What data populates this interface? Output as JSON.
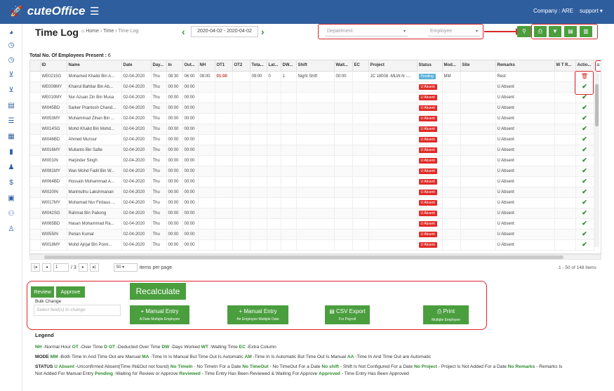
{
  "app": {
    "brand": "cuteOffice",
    "company": "Company : ARE",
    "user": "support"
  },
  "page": {
    "title": "Time Log",
    "breadcrumb_home": "Home",
    "breadcrumb_section": "Time",
    "breadcrumb_current": "Time Log"
  },
  "date_range": "2020-04-02 - 2020-04-02",
  "filters": {
    "department": "Department",
    "employee": "Employee"
  },
  "total": {
    "label": "Total No. Of Employees Present :",
    "value": "6"
  },
  "table": {
    "columns": [
      "",
      "ID",
      "Name",
      "Date",
      "Day...",
      "In",
      "Out...",
      "NH",
      "OT1",
      "OT2",
      "Tota...",
      "Lat...",
      "DW...",
      "Shift",
      "Wait...",
      "EC",
      "Project",
      "Status",
      "Mod...",
      "Site",
      "Remarks",
      "W T R...",
      "Actio..."
    ],
    "rows": [
      [
        "",
        "WE0215G",
        "Mohamed Khalid Bin A...",
        "02-04-2020",
        "Thu",
        "08:30",
        "06:00",
        "08:00",
        "01:00",
        "",
        "09:00",
        "0",
        "1",
        "Night Shift",
        "00:00",
        "",
        "JC 18008 -MLW-N -...",
        "Pending",
        "MM",
        "",
        "Rest",
        "",
        ""
      ],
      [
        "",
        "WE009MY",
        "Khairul Bahtiar Bin Ab...",
        "02-04-2020",
        "Thu",
        "00:00",
        "00:00",
        "",
        "",
        "",
        "",
        "",
        "",
        "",
        "",
        "",
        "",
        "U Absent",
        "",
        "",
        "U Absent",
        "",
        ""
      ],
      [
        "",
        "WE010MY",
        "Nur Azuan Zin Bin Musa",
        "02-04-2020",
        "Thu",
        "00:00",
        "00:00",
        "",
        "",
        "",
        "",
        "",
        "",
        "",
        "",
        "",
        "",
        "U Absent",
        "",
        "",
        "U Absent",
        "",
        ""
      ],
      [
        "",
        "WI045BD",
        "Sarker Prantosh Chand...",
        "02-04-2020",
        "Thu",
        "00:00",
        "00:00",
        "",
        "",
        "",
        "",
        "",
        "",
        "",
        "",
        "",
        "",
        "U Absent",
        "",
        "",
        "U Absent",
        "",
        ""
      ],
      [
        "",
        "WI053MY",
        "Muhammad Zihan Bin ...",
        "02-04-2020",
        "Thu",
        "00:00",
        "00:00",
        "",
        "",
        "",
        "",
        "",
        "",
        "",
        "",
        "",
        "",
        "U Absent",
        "",
        "",
        "U Absent",
        "",
        ""
      ],
      [
        "",
        "WI014SG",
        "Mohd Khalid Bin Mohd...",
        "02-04-2020",
        "Thu",
        "00:00",
        "00:00",
        "",
        "",
        "",
        "",
        "",
        "",
        "",
        "",
        "",
        "",
        "U Absent",
        "",
        "",
        "U Absent",
        "",
        ""
      ],
      [
        "",
        "WI046BD",
        "Ahmed Munsur",
        "02-04-2020",
        "Thu",
        "00:00",
        "00:00",
        "",
        "",
        "",
        "",
        "",
        "",
        "",
        "",
        "",
        "",
        "U Absent",
        "",
        "",
        "U Absent",
        "",
        ""
      ],
      [
        "",
        "WI016MY",
        "Mulianto Bin Safie",
        "02-04-2020",
        "Thu",
        "00:00",
        "00:00",
        "",
        "",
        "",
        "",
        "",
        "",
        "",
        "",
        "",
        "",
        "U Absent",
        "",
        "",
        "U Absent",
        "",
        ""
      ],
      [
        "",
        "WI001IN",
        "Harjinder Singh",
        "02-04-2020",
        "Thu",
        "00:00",
        "00:00",
        "",
        "",
        "",
        "",
        "",
        "",
        "",
        "",
        "",
        "",
        "U Absent",
        "",
        "",
        "U Absent",
        "",
        ""
      ],
      [
        "",
        "WI081MY",
        "Wan Mohd Fadil Bin W...",
        "02-04-2020",
        "Thu",
        "00:00",
        "00:00",
        "",
        "",
        "",
        "",
        "",
        "",
        "",
        "",
        "",
        "",
        "U Absent",
        "",
        "",
        "U Absent",
        "",
        ""
      ],
      [
        "",
        "WI064BD",
        "Hossain Mohammad A...",
        "02-04-2020",
        "Thu",
        "00:00",
        "00:00",
        "",
        "",
        "",
        "",
        "",
        "",
        "",
        "",
        "",
        "",
        "U Absent",
        "",
        "",
        "U Absent",
        "",
        ""
      ],
      [
        "",
        "WI020IN",
        "Marimuthu Lakshmanan",
        "02-04-2020",
        "Thu",
        "00:00",
        "00:00",
        "",
        "",
        "",
        "",
        "",
        "",
        "",
        "",
        "",
        "",
        "U Absent",
        "",
        "",
        "U Absent",
        "",
        ""
      ],
      [
        "",
        "WI017MY",
        "Mohamad Nur Firdaus ...",
        "02-04-2020",
        "Thu",
        "00:00",
        "00:00",
        "",
        "",
        "",
        "",
        "",
        "",
        "",
        "",
        "",
        "",
        "U Absent",
        "",
        "",
        "U Absent",
        "",
        ""
      ],
      [
        "",
        "WI042SG",
        "Rahmat Bin Pabong",
        "02-04-2020",
        "Thu",
        "00:00",
        "00:00",
        "",
        "",
        "",
        "",
        "",
        "",
        "",
        "",
        "",
        "",
        "U Absent",
        "",
        "",
        "U Absent",
        "",
        ""
      ],
      [
        "",
        "WI065BD",
        "Hasan Mohammad Ra...",
        "02-04-2020",
        "Thu",
        "00:00",
        "00:00",
        "",
        "",
        "",
        "",
        "",
        "",
        "",
        "",
        "",
        "",
        "U Absent",
        "",
        "",
        "U Absent",
        "",
        ""
      ],
      [
        "",
        "WI055IN",
        "Perian Kumar",
        "02-04-2020",
        "Thu",
        "00:00",
        "00:00",
        "",
        "",
        "",
        "",
        "",
        "",
        "",
        "",
        "",
        "",
        "U Absent",
        "",
        "",
        "U Absent",
        "",
        ""
      ],
      [
        "",
        "WI018MY",
        "Mohd Ajrijal Bin Ponir...",
        "02-04-2020",
        "Thu",
        "00:00",
        "00:00",
        "",
        "",
        "",
        "",
        "",
        "",
        "",
        "",
        "",
        "",
        "U Absent",
        "",
        "",
        "U Absent",
        "",
        ""
      ]
    ]
  },
  "pager": {
    "page": "1",
    "of": "/ 3",
    "size": "50",
    "items_per_page": "items per page",
    "info": "1 - 50 of 148 items"
  },
  "actions": {
    "review": "Review",
    "approve": "Approve",
    "recalculate": "Recalculate",
    "bulk_label": "Bulk Change",
    "bulk_placeholder": "Select field(s) to change",
    "manual1_title": "+ Manual Entry",
    "manual1_sub": "A Date Multiple Employee",
    "manual2_title": "+ Manual Entry",
    "manual2_sub": "An Employee Multiple Date",
    "csv_title": "CSV Export",
    "csv_sub": "For Payroll",
    "print_title": "Print",
    "print_sub": "Multiple Employee"
  },
  "legend": {
    "title": "Legend",
    "line1": [
      [
        "NH",
        "-Normal Hour"
      ],
      [
        "OT",
        "-Over Time"
      ],
      [
        "D OT",
        "-Deducted Over Time"
      ],
      [
        "DW",
        "-Days Worked"
      ],
      [
        "WT",
        "-Waiting Time"
      ],
      [
        "EC",
        "-Extra Column"
      ]
    ],
    "mode_key": "MODE",
    "line2": [
      [
        "MM",
        "-Both Time In And Time Out are Manual"
      ],
      [
        "MA",
        "-Time In Is Manual But Time Out Is Automatic"
      ],
      [
        "AM",
        "-Time In Is Automatic But Time Out Is Manual"
      ],
      [
        "AA",
        "-Time In And Time Out are Automatic"
      ]
    ],
    "status_key": "STATUS",
    "line3": [
      [
        "U Absent",
        "-Unconfirmed Absent(Time IN&Out not found)"
      ],
      [
        "No TimeIn",
        "- No TimeIn For a Date"
      ],
      [
        "No TimeOut",
        "- No TimeOut For a Date"
      ],
      [
        "No shift",
        "- Shift Is Not Configured For a Date"
      ],
      [
        "No Project",
        "- Project Is Not Added For a Date"
      ],
      [
        "No Remarks",
        "- Remarks Is"
      ]
    ],
    "line4_pre": "Not Added For Manual Entry",
    "line4": [
      [
        "Pending",
        "-Waiting for Review or Approve"
      ],
      [
        "Reviewed",
        "- Time Entry Has Been Reviewed & Waiting For Approve"
      ],
      [
        "Approved",
        "- Time Entry Has Been Approved"
      ]
    ]
  }
}
